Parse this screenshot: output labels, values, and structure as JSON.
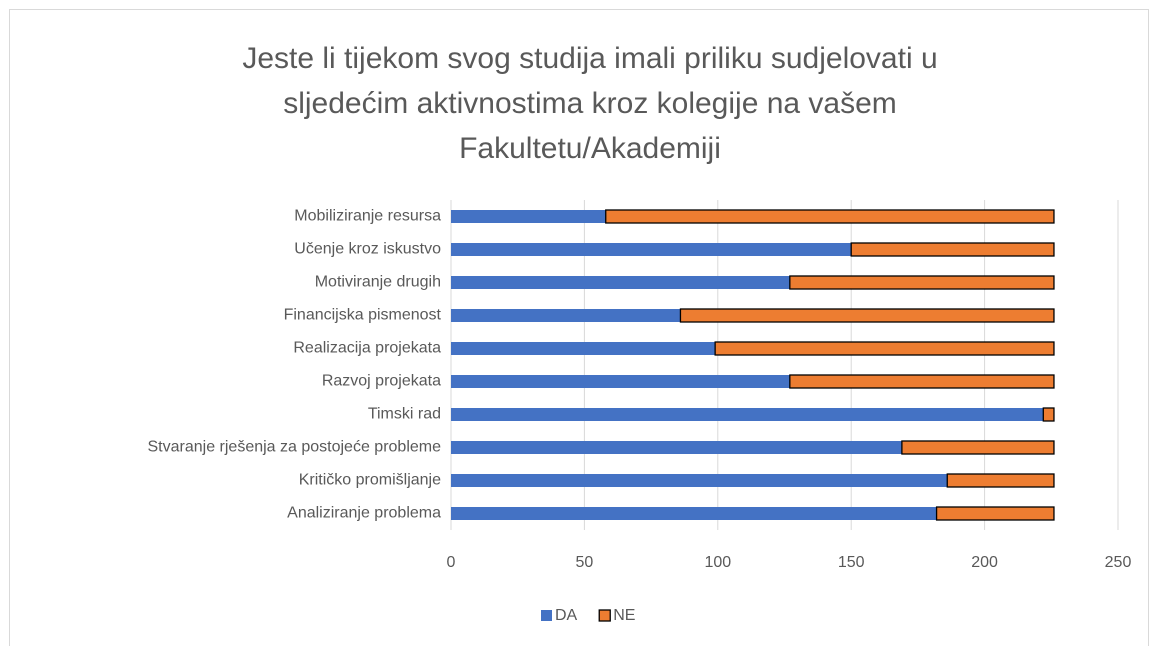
{
  "chart_data": {
    "type": "stacked_barh",
    "title": [
      "Jeste li tijekom svog studija imali priliku sudjelovati u",
      "sljedećim aktivnostima kroz kolegije na vašem",
      "Fakultetu/Akademiji"
    ],
    "categories": [
      "Mobiliziranje resursa",
      "Učenje kroz iskustvo",
      "Motiviranje drugih",
      "Financijska pismenost",
      "Realizacija projekata",
      "Razvoj projekata",
      "Timski rad",
      "Stvaranje rješenja za postojeće probleme",
      "Kritičko promišljanje",
      "Analiziranje problema"
    ],
    "series": [
      {
        "name": "DA",
        "color": "#4472c4",
        "values": [
          58,
          150,
          127,
          86,
          99,
          127,
          222,
          169,
          186,
          182
        ]
      },
      {
        "name": "NE",
        "color": "#ed7d31",
        "values": [
          168,
          76,
          99,
          140,
          127,
          99,
          4,
          57,
          40,
          44
        ]
      }
    ],
    "xlim": [
      0,
      250
    ],
    "xticks": [
      0,
      50,
      100,
      150,
      200,
      250
    ],
    "grid": true,
    "legend": "bottom"
  }
}
